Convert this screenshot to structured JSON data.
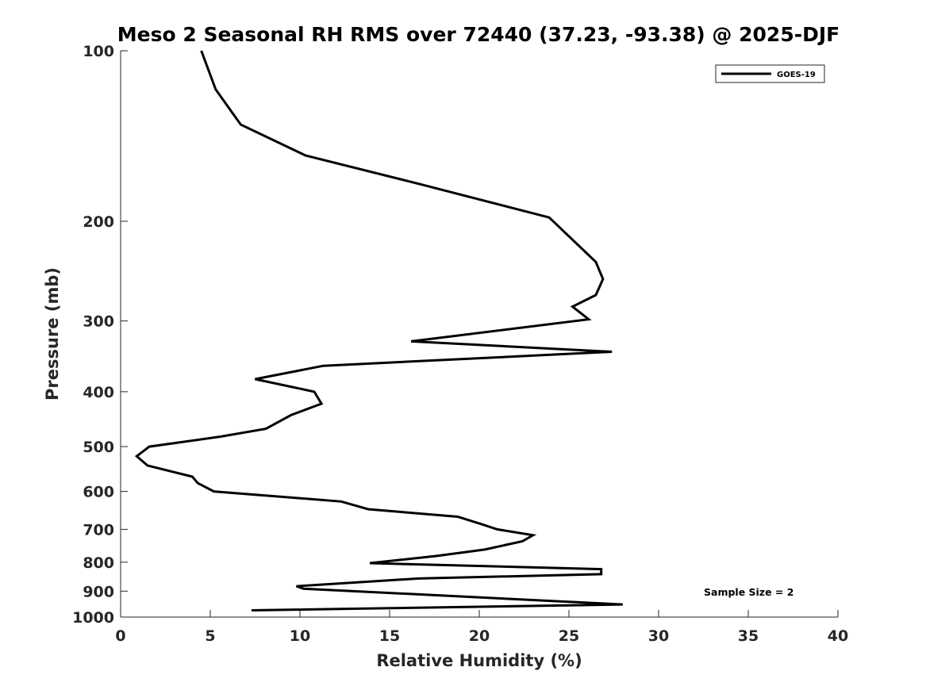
{
  "chart_data": {
    "type": "line",
    "title": "Meso 2 Seasonal RH RMS over 72440 (37.23, -93.38) @ 2025-DJF",
    "xlabel": "Relative Humidity (%)",
    "ylabel": "Pressure (mb)",
    "xlim": [
      0,
      40
    ],
    "ylim": [
      100,
      1000
    ],
    "y_scale": "log",
    "y_reversed": true,
    "xticks": [
      0,
      5,
      10,
      15,
      20,
      25,
      30,
      35,
      40
    ],
    "yticks": [
      100,
      200,
      300,
      400,
      500,
      600,
      700,
      800,
      900,
      1000
    ],
    "grid": false,
    "legend_position": "top-right",
    "annotation": "Sample Size = 2",
    "series": [
      {
        "name": "GOES-19",
        "color": "#000000",
        "x": [
          4.5,
          5.3,
          6.7,
          10.3,
          16.7,
          23.9,
          26.5,
          26.9,
          26.5,
          25.2,
          26.1,
          16.2,
          27.4,
          11.3,
          7.5,
          10.8,
          11.2,
          9.5,
          8.1,
          5.6,
          1.6,
          0.9,
          1.5,
          4.0,
          4.3,
          5.2,
          12.3,
          13.8,
          18.8,
          20.1,
          21.0,
          23.0,
          22.4,
          20.3,
          17.6,
          13.9,
          26.8,
          26.8,
          16.6,
          9.8,
          10.2,
          28.0,
          7.3
        ],
        "y": [
          100,
          117,
          135,
          153,
          172,
          197,
          236,
          253,
          270,
          283,
          298,
          326,
          340,
          360,
          380,
          400,
          420,
          440,
          465,
          480,
          500,
          520,
          540,
          565,
          580,
          600,
          625,
          645,
          665,
          685,
          700,
          717,
          735,
          760,
          780,
          803,
          823,
          840,
          855,
          882,
          891,
          950,
          973
        ]
      }
    ]
  }
}
